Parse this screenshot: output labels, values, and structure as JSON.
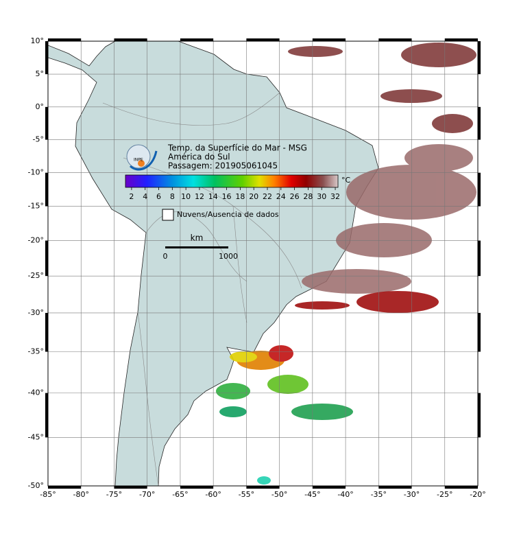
{
  "map": {
    "title_lines": [
      "Temp. da Superfície do Mar - MSG",
      "América do Sul",
      "Passagem: 201905061045"
    ],
    "logo": "INPE",
    "lon_ticks": [
      {
        "value": -85,
        "label": "-85°"
      },
      {
        "value": -80,
        "label": "-80°"
      },
      {
        "value": -75,
        "label": "-75°"
      },
      {
        "value": -70,
        "label": "-70°"
      },
      {
        "value": -65,
        "label": "-65°"
      },
      {
        "value": -60,
        "label": "-60°"
      },
      {
        "value": -55,
        "label": "-55°"
      },
      {
        "value": -50,
        "label": "-50°"
      },
      {
        "value": -45,
        "label": "-45°"
      },
      {
        "value": -40,
        "label": "-40°"
      },
      {
        "value": -35,
        "label": "-35°"
      },
      {
        "value": -30,
        "label": "-30°"
      },
      {
        "value": -25,
        "label": "-25°"
      },
      {
        "value": -20,
        "label": "-20°"
      }
    ],
    "lat_ticks": [
      {
        "value": 10,
        "label": "10°"
      },
      {
        "value": 5,
        "label": "5°"
      },
      {
        "value": 0,
        "label": "0°"
      },
      {
        "value": -5,
        "label": "-5°"
      },
      {
        "value": -10,
        "label": "-10°"
      },
      {
        "value": -15,
        "label": "-15°"
      },
      {
        "value": -20,
        "label": "-20°"
      },
      {
        "value": -25,
        "label": "-25°"
      },
      {
        "value": -30,
        "label": "-30°"
      },
      {
        "value": -35,
        "label": "-35°"
      },
      {
        "value": -40,
        "label": "-40°"
      },
      {
        "value": -45,
        "label": "-45°"
      },
      {
        "value": -50,
        "label": "-50°"
      }
    ],
    "grid": true,
    "colorbar": {
      "unit": "°C",
      "range": [
        1.1,
        32.4
      ],
      "ticks": [
        2,
        4,
        6,
        8,
        10,
        12,
        14,
        16,
        18,
        20,
        22,
        24,
        26,
        28,
        30,
        32
      ]
    },
    "legend": "Nuvens/Ausencia de dados",
    "scale_bar": {
      "unit": "km",
      "ticks": [
        0,
        1000
      ]
    }
  }
}
